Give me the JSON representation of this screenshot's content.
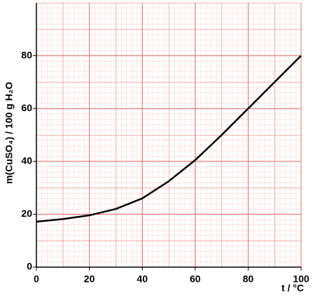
{
  "chart_data": {
    "type": "line",
    "x_label": "t / °C",
    "y_label": "m(CuSO₄) / 100 g H₂O",
    "x": [
      0,
      10,
      20,
      30,
      40,
      50,
      60,
      70,
      80,
      90,
      100
    ],
    "series": [
      {
        "color": "#000000",
        "values": [
          17.2,
          18.2,
          19.6,
          22,
          26,
          32.5,
          40.5,
          50,
          60,
          70,
          80
        ]
      }
    ],
    "xlim": [
      0,
      100
    ],
    "xticks": [
      0,
      20,
      40,
      60,
      80,
      100
    ],
    "ylim": [
      0,
      100
    ],
    "yticks": [
      0,
      20,
      40,
      60,
      80
    ],
    "grid": true
  }
}
